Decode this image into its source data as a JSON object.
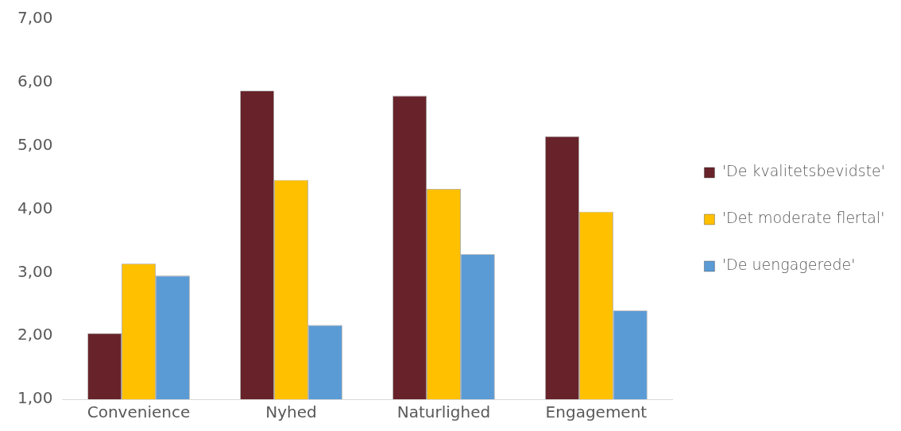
{
  "chart_data": {
    "type": "bar",
    "categories": [
      "Convenience",
      "Nyhed",
      "Naturlighed",
      "Engagement"
    ],
    "series": [
      {
        "name": "'De kvalitetsbevidste'",
        "color": "#68232a",
        "values": [
          2.04,
          5.87,
          5.79,
          5.15
        ]
      },
      {
        "name": "'Det moderate flertal'",
        "color": "#ffc000",
        "values": [
          3.14,
          4.46,
          4.32,
          3.96
        ]
      },
      {
        "name": "'De uengagerede'",
        "color": "#5b9bd5",
        "values": [
          2.95,
          2.17,
          3.29,
          2.4
        ]
      }
    ],
    "ylim": [
      1,
      7
    ],
    "yticks": [
      {
        "value": 1,
        "label": "1,00"
      },
      {
        "value": 2,
        "label": "2,00"
      },
      {
        "value": 3,
        "label": "3,00"
      },
      {
        "value": 4,
        "label": "4,00"
      },
      {
        "value": 5,
        "label": "5,00"
      },
      {
        "value": 6,
        "label": "6,00"
      },
      {
        "value": 7,
        "label": "7,00"
      }
    ],
    "grid": false,
    "legend": "right"
  }
}
